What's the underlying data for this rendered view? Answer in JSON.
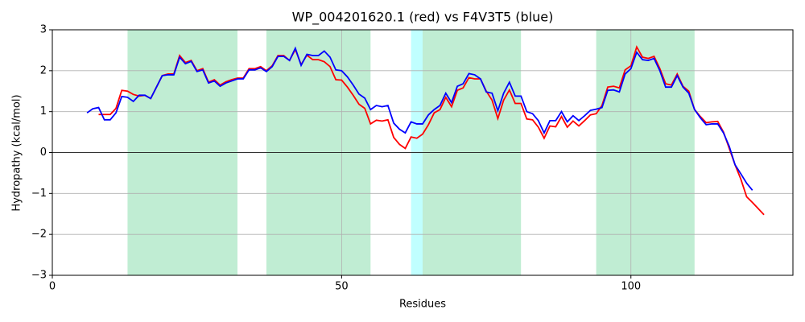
{
  "chart_data": {
    "type": "line",
    "title": "WP_004201620.1 (red) vs F4V3T5 (blue)",
    "x_label": "Residues",
    "y_label": "Hydropathy (kcal/mol)",
    "xlim": [
      0,
      128
    ],
    "ylim": [
      -3,
      3
    ],
    "xticks": [
      0,
      50,
      100
    ],
    "yticks": [
      {
        "value": -3,
        "label": "−3"
      },
      {
        "value": -2,
        "label": "−2"
      },
      {
        "value": -1,
        "label": "−1"
      },
      0,
      1,
      2,
      3
    ],
    "grid": true,
    "reference_line": 0,
    "regions": [
      {
        "start": 13,
        "end": 32,
        "color": "#c0edd3"
      },
      {
        "start": 37,
        "end": 55,
        "color": "#c0edd3"
      },
      {
        "start": 62,
        "end": 64,
        "color": "#c0ffff"
      },
      {
        "start": 64,
        "end": 81,
        "color": "#c0edd3"
      },
      {
        "start": 94,
        "end": 111,
        "color": "#c0edd3"
      }
    ],
    "series": [
      {
        "name": "WP_004201620.1",
        "color": "#ff0000",
        "x": [
          8,
          9,
          10,
          11,
          12,
          13,
          14,
          15,
          16,
          17,
          18,
          19,
          20,
          21,
          22,
          23,
          24,
          25,
          26,
          27,
          28,
          29,
          30,
          31,
          32,
          33,
          34,
          35,
          36,
          37,
          38,
          39,
          40,
          41,
          42,
          43,
          44,
          45,
          46,
          47,
          48,
          49,
          50,
          51,
          52,
          53,
          54,
          55,
          56,
          57,
          58,
          59,
          60,
          61,
          62,
          63,
          64,
          65,
          66,
          67,
          68,
          69,
          70,
          71,
          72,
          73,
          74,
          75,
          76,
          77,
          78,
          79,
          80,
          81,
          82,
          83,
          84,
          85,
          86,
          87,
          88,
          89,
          90,
          91,
          92,
          93,
          94,
          95,
          96,
          97,
          98,
          99,
          100,
          101,
          102,
          103,
          104,
          105,
          106,
          107,
          108,
          109,
          110,
          111,
          112,
          113,
          114,
          115,
          116,
          117,
          118,
          119,
          120,
          121,
          122,
          123
        ],
        "values": [
          0.93,
          0.93,
          0.93,
          1.08,
          1.52,
          1.5,
          1.42,
          1.38,
          1.4,
          1.32,
          1.6,
          1.88,
          1.92,
          1.92,
          2.37,
          2.2,
          2.25,
          2.0,
          2.05,
          1.72,
          1.78,
          1.65,
          1.73,
          1.78,
          1.82,
          1.82,
          2.05,
          2.05,
          2.1,
          2.0,
          2.12,
          2.37,
          2.37,
          2.25,
          2.52,
          2.15,
          2.38,
          2.27,
          2.27,
          2.22,
          2.1,
          1.78,
          1.77,
          1.6,
          1.4,
          1.18,
          1.08,
          0.7,
          0.79,
          0.77,
          0.8,
          0.37,
          0.2,
          0.1,
          0.38,
          0.35,
          0.45,
          0.68,
          0.97,
          1.05,
          1.35,
          1.12,
          1.52,
          1.58,
          1.83,
          1.8,
          1.8,
          1.5,
          1.28,
          0.83,
          1.28,
          1.53,
          1.2,
          1.2,
          0.82,
          0.8,
          0.62,
          0.35,
          0.65,
          0.63,
          0.88,
          0.62,
          0.77,
          0.65,
          0.78,
          0.92,
          0.95,
          1.15,
          1.6,
          1.62,
          1.58,
          2.02,
          2.12,
          2.58,
          2.33,
          2.3,
          2.35,
          2.05,
          1.68,
          1.65,
          1.92,
          1.62,
          1.5,
          1.05,
          0.88,
          0.73,
          0.75,
          0.76,
          0.5,
          0.1,
          -0.3,
          -0.65,
          -1.08,
          -1.22,
          -1.37,
          -1.52
        ]
      },
      {
        "name": "F4V3T5",
        "color": "#0000ff",
        "x": [
          6,
          7,
          8,
          9,
          10,
          11,
          12,
          13,
          14,
          15,
          16,
          17,
          18,
          19,
          20,
          21,
          22,
          23,
          24,
          25,
          26,
          27,
          28,
          29,
          30,
          31,
          32,
          33,
          34,
          35,
          36,
          37,
          38,
          39,
          40,
          41,
          42,
          43,
          44,
          45,
          46,
          47,
          48,
          49,
          50,
          51,
          52,
          53,
          54,
          55,
          56,
          57,
          58,
          59,
          60,
          61,
          62,
          63,
          64,
          65,
          66,
          67,
          68,
          69,
          70,
          71,
          72,
          73,
          74,
          75,
          76,
          77,
          78,
          79,
          80,
          81,
          82,
          83,
          84,
          85,
          86,
          87,
          88,
          89,
          90,
          91,
          92,
          93,
          94,
          95,
          96,
          97,
          98,
          99,
          100,
          101,
          102,
          103,
          104,
          105,
          106,
          107,
          108,
          109,
          110,
          111,
          112,
          113,
          114,
          115,
          116,
          117,
          118,
          119,
          120,
          121
        ],
        "values": [
          0.97,
          1.07,
          1.1,
          0.8,
          0.8,
          0.97,
          1.37,
          1.35,
          1.25,
          1.4,
          1.4,
          1.32,
          1.6,
          1.88,
          1.9,
          1.9,
          2.33,
          2.17,
          2.23,
          1.98,
          2.02,
          1.7,
          1.75,
          1.62,
          1.7,
          1.75,
          1.8,
          1.8,
          2.02,
          2.02,
          2.07,
          1.98,
          2.1,
          2.35,
          2.35,
          2.25,
          2.55,
          2.13,
          2.4,
          2.37,
          2.37,
          2.48,
          2.33,
          2.02,
          2.0,
          1.85,
          1.65,
          1.43,
          1.33,
          1.05,
          1.15,
          1.12,
          1.15,
          0.72,
          0.57,
          0.48,
          0.75,
          0.7,
          0.7,
          0.92,
          1.05,
          1.15,
          1.45,
          1.22,
          1.62,
          1.68,
          1.93,
          1.9,
          1.8,
          1.48,
          1.45,
          1.02,
          1.45,
          1.72,
          1.38,
          1.38,
          1.0,
          0.95,
          0.78,
          0.48,
          0.78,
          0.78,
          1.0,
          0.75,
          0.9,
          0.78,
          0.9,
          1.03,
          1.06,
          1.1,
          1.52,
          1.53,
          1.48,
          1.92,
          2.05,
          2.45,
          2.27,
          2.25,
          2.3,
          2.0,
          1.6,
          1.6,
          1.88,
          1.6,
          1.45,
          1.05,
          0.85,
          0.68,
          0.7,
          0.7,
          0.48,
          0.15,
          -0.3,
          -0.52,
          -0.75,
          -0.92
        ]
      }
    ]
  }
}
